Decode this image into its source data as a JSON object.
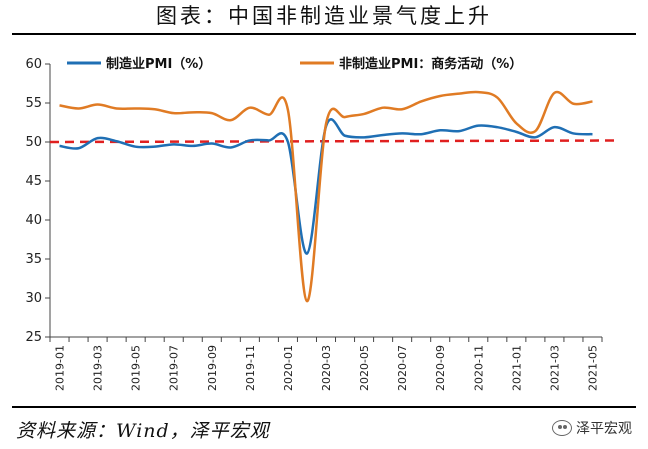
{
  "title": "图表：中国非制造业景气度上升",
  "source": "资料来源：Wind，泽平宏观",
  "watermark": "泽平宏观",
  "watermark_icon": "wechat-icon",
  "chart_data": {
    "type": "line",
    "title": "图表：中国非制造业景气度上升",
    "x": [
      "2019-01",
      "2019-02",
      "2019-03",
      "2019-04",
      "2019-05",
      "2019-06",
      "2019-07",
      "2019-08",
      "2019-09",
      "2019-10",
      "2019-11",
      "2019-12",
      "2020-01",
      "2020-02",
      "2020-03",
      "2020-04",
      "2020-05",
      "2020-06",
      "2020-07",
      "2020-08",
      "2020-09",
      "2020-10",
      "2020-11",
      "2020-12",
      "2021-01",
      "2021-02",
      "2021-03",
      "2021-04",
      "2021-05"
    ],
    "xticks": [
      "2019-01",
      "2019-03",
      "2019-05",
      "2019-07",
      "2019-09",
      "2019-11",
      "2020-01",
      "2020-03",
      "2020-05",
      "2020-07",
      "2020-09",
      "2020-11",
      "2021-01",
      "2021-03",
      "2021-05"
    ],
    "ylim": [
      25,
      60
    ],
    "yticks": [
      25,
      30,
      35,
      40,
      45,
      50,
      55,
      60
    ],
    "series": [
      {
        "name": "制造业PMI（%）",
        "color": "#1f6fb4",
        "values": [
          49.5,
          49.2,
          50.5,
          50.1,
          49.4,
          49.4,
          49.7,
          49.5,
          49.8,
          49.3,
          50.2,
          50.2,
          50.0,
          35.7,
          52.0,
          50.8,
          50.6,
          50.9,
          51.1,
          51.0,
          51.5,
          51.4,
          52.1,
          51.9,
          51.3,
          50.6,
          51.9,
          51.1,
          51.0
        ]
      },
      {
        "name": "非制造业PMI：商务活动（%）",
        "color": "#e07b24",
        "values": [
          54.7,
          54.3,
          54.8,
          54.3,
          54.3,
          54.2,
          53.7,
          53.8,
          53.7,
          52.8,
          54.4,
          53.5,
          54.1,
          29.6,
          52.3,
          53.2,
          53.6,
          54.4,
          54.2,
          55.2,
          55.9,
          56.2,
          56.4,
          55.7,
          52.4,
          51.4,
          56.3,
          54.9,
          55.2
        ]
      }
    ],
    "reference_line": {
      "value": 50,
      "color": "#e02020",
      "style": "dashed"
    },
    "legend": "top",
    "grid": false
  }
}
